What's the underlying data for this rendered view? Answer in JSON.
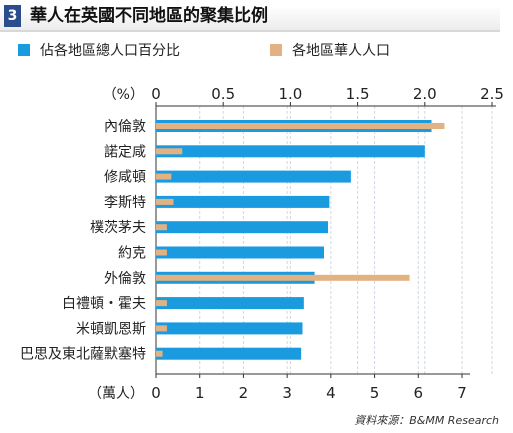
{
  "header": {
    "number": "3",
    "title": "華人在英國不同地區的聚集比例"
  },
  "colors": {
    "pct_bar": "#1a9be0",
    "pop_bar": "#e2b283",
    "header_box": "#2b4d8c",
    "grid": "#cfd8e4"
  },
  "source": "資料來源：B&MM Research",
  "chart_data": {
    "type": "bar",
    "orientation": "horizontal",
    "categories": [
      "內倫敦",
      "諾定咸",
      "修咸頓",
      "李斯特",
      "樸茨茅夫",
      "約克",
      "外倫敦",
      "白禮頓・霍夫",
      "米頓凱恩斯",
      "巴思及東北薩默塞特"
    ],
    "series": [
      {
        "name": "佔各地區總人口百分比",
        "axis": "top",
        "values": [
          2.05,
          2.0,
          1.45,
          1.29,
          1.28,
          1.25,
          1.18,
          1.1,
          1.09,
          1.08
        ]
      },
      {
        "name": "各地區華人人口",
        "axis": "bottom",
        "values": [
          6.6,
          0.6,
          0.35,
          0.4,
          0.25,
          0.25,
          5.8,
          0.25,
          0.25,
          0.15
        ]
      }
    ],
    "top_axis": {
      "unit_label": "（%）",
      "ticks": [
        "0",
        "0.5",
        "1.0",
        "1.5",
        "2.0",
        "2.5"
      ],
      "range": [
        0,
        2.5
      ]
    },
    "bottom_axis": {
      "unit_label": "（萬人）",
      "ticks": [
        "0",
        "1",
        "2",
        "3",
        "4",
        "5",
        "6",
        "7"
      ],
      "range": [
        0,
        7
      ]
    },
    "grid": true
  }
}
